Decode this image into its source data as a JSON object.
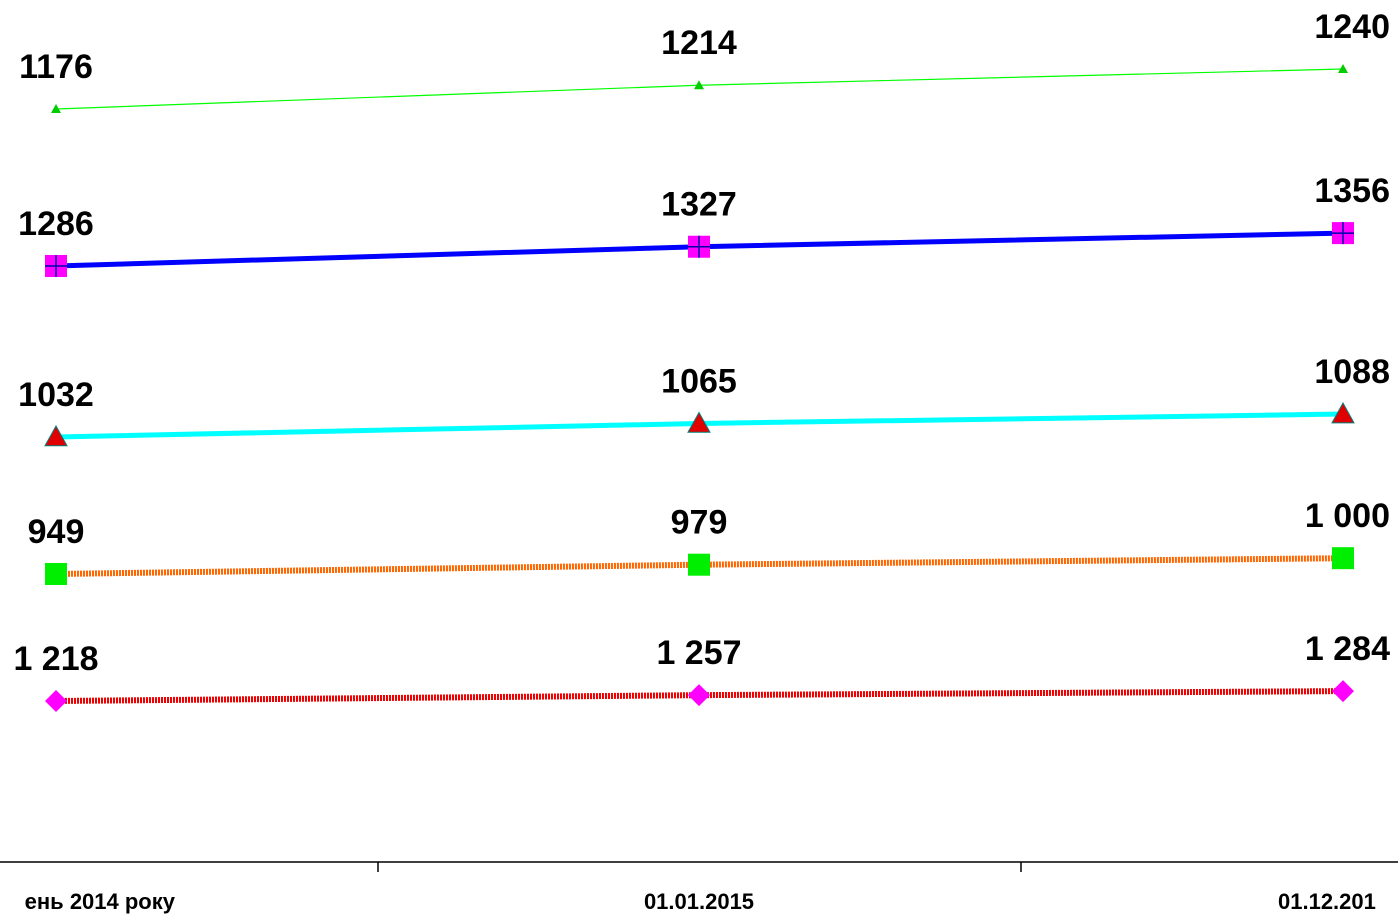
{
  "chart_data": {
    "type": "line",
    "categories": [
      "ень 2014 року",
      "01.01.2015",
      "01.12.201"
    ],
    "series": [
      {
        "name": null,
        "color": "#00ff00",
        "marker": "triangle",
        "marker_color": "#00cc00",
        "values": [
          1176,
          1214,
          1240
        ]
      },
      {
        "name": null,
        "color": "#0000ff",
        "marker": "square-cross",
        "marker_color": "#ff00ff",
        "values": [
          1286,
          1327,
          1356
        ]
      },
      {
        "name": null,
        "color": "#00ffff",
        "marker": "triangle",
        "marker_color": "#e00000",
        "values": [
          1032,
          1065,
          1088
        ]
      },
      {
        "name": null,
        "color": "#ff6600",
        "marker": "square",
        "marker_color": "#00ee00",
        "values": [
          949,
          979,
          1000
        ],
        "value_labels": [
          "949",
          "979",
          "1 000"
        ]
      },
      {
        "name": null,
        "color": "#ee0000",
        "marker": "diamond",
        "marker_color": "#ff00ff",
        "values": [
          1218,
          1257,
          1284
        ],
        "value_labels": [
          "1 218",
          "1 257",
          "1 284"
        ]
      }
    ]
  }
}
